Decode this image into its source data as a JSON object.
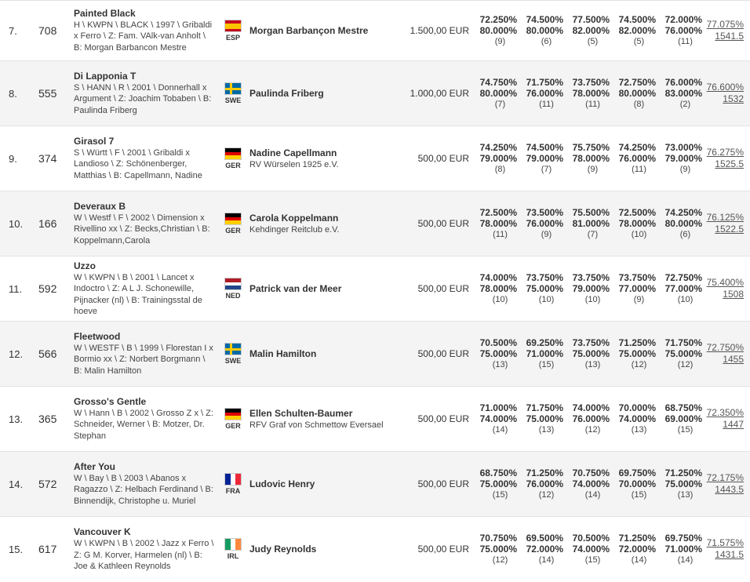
{
  "rows": [
    {
      "rank": "7.",
      "num": "708",
      "horse": "Painted Black",
      "details": "H \\ KWPN \\ BLACK \\ 1997 \\ Gribaldi x Ferro \\ Z: Fam. VAlk-van Anholt \\ B: Morgan Barbancon Mestre",
      "flag": "flag-spain",
      "country": "ESP",
      "rider": "Morgan Barbançon Mestre",
      "club": "",
      "prize": "1.500,00 EUR",
      "scores": [
        {
          "a": "72.250%",
          "b": "80.000%",
          "p": "(9)"
        },
        {
          "a": "74.500%",
          "b": "80.000%",
          "p": "(6)"
        },
        {
          "a": "77.500%",
          "b": "82.000%",
          "p": "(5)"
        },
        {
          "a": "74.500%",
          "b": "82.000%",
          "p": "(5)"
        },
        {
          "a": "72.000%",
          "b": "76.000%",
          "p": "(11)"
        }
      ],
      "total_pct": "77.075%",
      "total_pts": "1541.5"
    },
    {
      "rank": "8.",
      "num": "555",
      "horse": "Di Lapponia T",
      "details": "S \\ HANN \\ R \\ 2001 \\ Donnerhall x Argument \\ Z: Joachim Tobaben \\ B: Paulinda Friberg",
      "flag": "flag-sweden",
      "country": "SWE",
      "rider": "Paulinda Friberg",
      "club": "",
      "prize": "1.000,00 EUR",
      "scores": [
        {
          "a": "74.750%",
          "b": "80.000%",
          "p": "(7)"
        },
        {
          "a": "71.750%",
          "b": "76.000%",
          "p": "(11)"
        },
        {
          "a": "73.750%",
          "b": "78.000%",
          "p": "(11)"
        },
        {
          "a": "72.750%",
          "b": "80.000%",
          "p": "(8)"
        },
        {
          "a": "76.000%",
          "b": "83.000%",
          "p": "(2)"
        }
      ],
      "total_pct": "76.600%",
      "total_pts": "1532"
    },
    {
      "rank": "9.",
      "num": "374",
      "horse": "Girasol 7",
      "details": "S \\ Württ \\ F \\ 2001 \\ Gribaldi x Landioso \\ Z: Schönenberger, Matthias \\ B: Capellmann, Nadine",
      "flag": "flag-germany",
      "country": "GER",
      "rider": "Nadine Capellmann",
      "club": "RV Würselen 1925 e.V.",
      "prize": "500,00 EUR",
      "scores": [
        {
          "a": "74.250%",
          "b": "79.000%",
          "p": "(8)"
        },
        {
          "a": "74.500%",
          "b": "79.000%",
          "p": "(7)"
        },
        {
          "a": "75.750%",
          "b": "78.000%",
          "p": "(9)"
        },
        {
          "a": "74.250%",
          "b": "76.000%",
          "p": "(11)"
        },
        {
          "a": "73.000%",
          "b": "79.000%",
          "p": "(9)"
        }
      ],
      "total_pct": "76.275%",
      "total_pts": "1525.5"
    },
    {
      "rank": "10.",
      "num": "166",
      "horse": "Deveraux B",
      "details": "W \\ Westf \\ F \\ 2002 \\ Dimension x Rivellino xx \\ Z: Becks,Christian \\ B: Koppelmann,Carola",
      "flag": "flag-germany",
      "country": "GER",
      "rider": "Carola Koppelmann",
      "club": "Kehdinger Reitclub e.V.",
      "prize": "500,00 EUR",
      "scores": [
        {
          "a": "72.500%",
          "b": "78.000%",
          "p": "(11)"
        },
        {
          "a": "73.500%",
          "b": "76.000%",
          "p": "(9)"
        },
        {
          "a": "75.500%",
          "b": "81.000%",
          "p": "(7)"
        },
        {
          "a": "72.500%",
          "b": "78.000%",
          "p": "(10)"
        },
        {
          "a": "74.250%",
          "b": "80.000%",
          "p": "(6)"
        }
      ],
      "total_pct": "76.125%",
      "total_pts": "1522.5"
    },
    {
      "rank": "11.",
      "num": "592",
      "horse": "Uzzo",
      "details": "W \\ KWPN \\ B \\ 2001 \\ Lancet x Indoctro \\ Z: A L J. Schonewille, Pijnacker (nl) \\ B: Trainingsstal de hoeve",
      "flag": "flag-netherlands",
      "country": "NED",
      "rider": "Patrick van der Meer",
      "club": "",
      "prize": "500,00 EUR",
      "scores": [
        {
          "a": "74.000%",
          "b": "78.000%",
          "p": "(10)"
        },
        {
          "a": "73.750%",
          "b": "75.000%",
          "p": "(10)"
        },
        {
          "a": "73.750%",
          "b": "79.000%",
          "p": "(10)"
        },
        {
          "a": "73.750%",
          "b": "77.000%",
          "p": "(9)"
        },
        {
          "a": "72.750%",
          "b": "77.000%",
          "p": "(10)"
        }
      ],
      "total_pct": "75.400%",
      "total_pts": "1508"
    },
    {
      "rank": "12.",
      "num": "566",
      "horse": "Fleetwood",
      "details": "W \\ WESTF \\ B \\ 1999 \\ Florestan I x Bormio xx \\ Z: Norbert Borgmann \\ B: Malin Hamilton",
      "flag": "flag-sweden",
      "country": "SWE",
      "rider": "Malin Hamilton",
      "club": "",
      "prize": "500,00 EUR",
      "scores": [
        {
          "a": "70.500%",
          "b": "75.000%",
          "p": "(13)"
        },
        {
          "a": "69.250%",
          "b": "71.000%",
          "p": "(15)"
        },
        {
          "a": "73.750%",
          "b": "75.000%",
          "p": "(13)"
        },
        {
          "a": "71.250%",
          "b": "75.000%",
          "p": "(12)"
        },
        {
          "a": "71.750%",
          "b": "75.000%",
          "p": "(12)"
        }
      ],
      "total_pct": "72.750%",
      "total_pts": "1455"
    },
    {
      "rank": "13.",
      "num": "365",
      "horse": "Grosso's Gentle",
      "details": "W \\ Hann \\ B \\ 2002 \\ Grosso Z x \\ Z: Schneider, Werner \\ B: Motzer, Dr. Stephan",
      "flag": "flag-germany",
      "country": "GER",
      "rider": "Ellen Schulten-Baumer",
      "club": "RFV Graf von Schmettow Eversael",
      "prize": "500,00 EUR",
      "scores": [
        {
          "a": "71.000%",
          "b": "74.000%",
          "p": "(14)"
        },
        {
          "a": "71.750%",
          "b": "75.000%",
          "p": "(13)"
        },
        {
          "a": "74.000%",
          "b": "76.000%",
          "p": "(12)"
        },
        {
          "a": "70.000%",
          "b": "74.000%",
          "p": "(13)"
        },
        {
          "a": "68.750%",
          "b": "69.000%",
          "p": "(15)"
        }
      ],
      "total_pct": "72.350%",
      "total_pts": "1447"
    },
    {
      "rank": "14.",
      "num": "572",
      "horse": "After You",
      "details": "W \\ Bay \\ B \\ 2003 \\ Abanos x Ragazzo \\ Z: Helbach Ferdinand \\ B: Binnendijk, Christophe u. Muriel",
      "flag": "flag-france",
      "country": "FRA",
      "rider": "Ludovic Henry",
      "club": "",
      "prize": "500,00 EUR",
      "scores": [
        {
          "a": "68.750%",
          "b": "75.000%",
          "p": "(15)"
        },
        {
          "a": "71.250%",
          "b": "76.000%",
          "p": "(12)"
        },
        {
          "a": "70.750%",
          "b": "74.000%",
          "p": "(14)"
        },
        {
          "a": "69.750%",
          "b": "70.000%",
          "p": "(15)"
        },
        {
          "a": "71.250%",
          "b": "75.000%",
          "p": "(13)"
        }
      ],
      "total_pct": "72.175%",
      "total_pts": "1443.5"
    },
    {
      "rank": "15.",
      "num": "617",
      "horse": "Vancouver K",
      "details": "W \\ KWPN \\ B \\ 2002 \\ Jazz x Ferro \\ Z: G M. Korver, Harmelen (nl) \\ B: Joe & Kathleen Reynolds",
      "flag": "flag-ireland",
      "country": "IRL",
      "rider": "Judy Reynolds",
      "club": "",
      "prize": "500,00 EUR",
      "scores": [
        {
          "a": "70.750%",
          "b": "75.000%",
          "p": "(12)"
        },
        {
          "a": "69.500%",
          "b": "72.000%",
          "p": "(14)"
        },
        {
          "a": "70.500%",
          "b": "74.000%",
          "p": "(15)"
        },
        {
          "a": "71.250%",
          "b": "72.000%",
          "p": "(14)"
        },
        {
          "a": "69.750%",
          "b": "71.000%",
          "p": "(14)"
        }
      ],
      "total_pct": "71.575%",
      "total_pts": "1431.5"
    }
  ]
}
